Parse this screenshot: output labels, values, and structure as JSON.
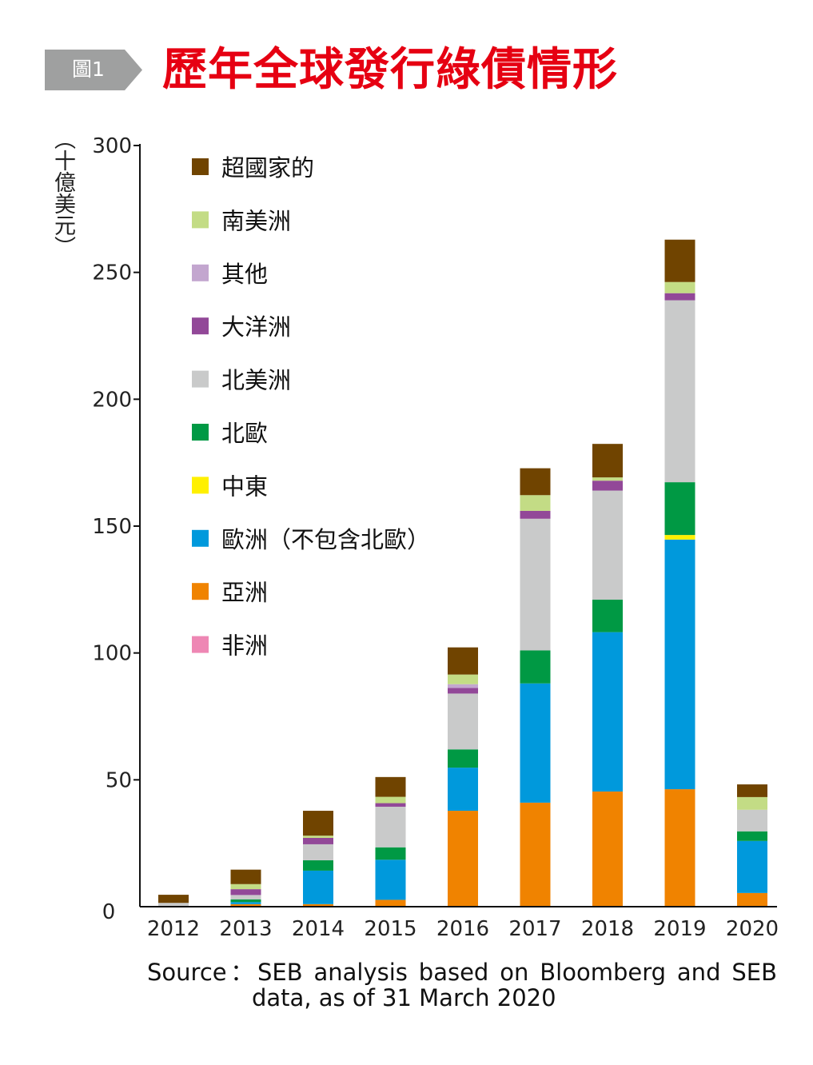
{
  "header": {
    "badge": "圖1",
    "title": "歷年全球發行綠債情形"
  },
  "source": {
    "line1": "Source：SEB analysis based on Bloomberg and SEB",
    "line2": "data, as of 31 March 2020"
  },
  "chart_data": {
    "type": "bar",
    "stacked": true,
    "title": "歷年全球發行綠債情形",
    "ylabel": "（十億美元）",
    "xlabel": "",
    "ylim": [
      0,
      300
    ],
    "yticks": [
      0,
      50,
      100,
      150,
      200,
      250,
      300
    ],
    "grid": false,
    "legend_position": "top-left",
    "categories": [
      "2012",
      "2013",
      "2014",
      "2015",
      "2016",
      "2017",
      "2018",
      "2019",
      "2020"
    ],
    "series": [
      {
        "name": "非洲",
        "color": "#ee87b4",
        "values": [
          0,
          0,
          0,
          0,
          0,
          0,
          0,
          0,
          0
        ]
      },
      {
        "name": "亞洲",
        "color": "#f08300",
        "values": [
          0,
          1,
          1,
          2.7,
          37.8,
          41,
          45.4,
          46.3,
          5.4
        ]
      },
      {
        "name": "歐洲（不包含北歐）",
        "color": "#0099dc",
        "values": [
          0,
          0.8,
          13.2,
          15.8,
          17,
          47,
          62.8,
          98.4,
          20.5
        ]
      },
      {
        "name": "中東",
        "color": "#fff000",
        "values": [
          0,
          0,
          0,
          0,
          0,
          0,
          0,
          1.8,
          0
        ]
      },
      {
        "name": "北歐",
        "color": "#009944",
        "values": [
          0,
          1.1,
          4.1,
          4.9,
          7.2,
          13,
          12.8,
          20.8,
          3.8
        ]
      },
      {
        "name": "北美洲",
        "color": "#c9caca",
        "values": [
          1.5,
          1.7,
          6.3,
          16,
          22,
          51.9,
          43,
          71.7,
          8.5
        ]
      },
      {
        "name": "大洋洲",
        "color": "#924898",
        "values": [
          0,
          2.3,
          2.5,
          1.4,
          2.2,
          3.1,
          3.9,
          2.8,
          0
        ]
      },
      {
        "name": "其他",
        "color": "#c3a6cf",
        "values": [
          0,
          0,
          0,
          0,
          1.5,
          0,
          0,
          0,
          0
        ]
      },
      {
        "name": "南美洲",
        "color": "#c3dc85",
        "values": [
          0,
          2,
          0.9,
          2.5,
          3.8,
          6.2,
          1.3,
          4.4,
          5
        ]
      },
      {
        "name": "超國家的",
        "color": "#704400",
        "values": [
          3.2,
          5.7,
          9.8,
          7.8,
          10.7,
          10.6,
          13.2,
          16.7,
          5
        ]
      }
    ]
  }
}
